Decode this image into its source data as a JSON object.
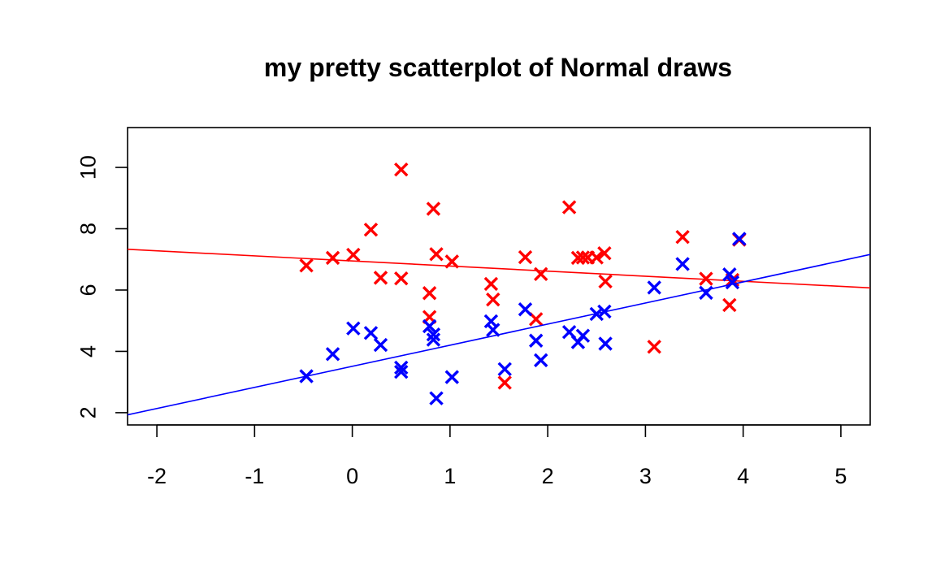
{
  "chart_data": {
    "type": "scatter",
    "title": "my pretty scatterplot of Normal draws",
    "xlabel": "",
    "ylabel": "",
    "xlim": [
      -2.3,
      5.3
    ],
    "ylim": [
      1.6,
      11.3
    ],
    "x_ticks": [
      -2,
      -1,
      0,
      1,
      2,
      3,
      4,
      5
    ],
    "y_ticks": [
      2,
      4,
      6,
      8,
      10
    ],
    "x_tick_labels": [
      "-2",
      "-1",
      "0",
      "1",
      "2",
      "3",
      "4",
      "5"
    ],
    "y_tick_labels": [
      "2",
      "4",
      "6",
      "8",
      "10"
    ],
    "grid": false,
    "legend": "none",
    "marker": "x",
    "series": [
      {
        "color": "#ff0000",
        "points": [
          [
            -0.47,
            6.8
          ],
          [
            -0.2,
            7.05
          ],
          [
            0.01,
            7.15
          ],
          [
            0.19,
            7.97
          ],
          [
            0.29,
            6.4
          ],
          [
            0.5,
            9.93
          ],
          [
            0.5,
            6.38
          ],
          [
            0.79,
            5.9
          ],
          [
            0.79,
            5.12
          ],
          [
            0.83,
            8.65
          ],
          [
            0.86,
            7.17
          ],
          [
            1.02,
            6.93
          ],
          [
            1.42,
            6.2
          ],
          [
            1.44,
            5.69
          ],
          [
            1.56,
            2.98
          ],
          [
            1.77,
            7.07
          ],
          [
            1.88,
            5.05
          ],
          [
            1.93,
            6.52
          ],
          [
            2.22,
            8.7
          ],
          [
            2.31,
            7.05
          ],
          [
            2.36,
            7.06
          ],
          [
            2.41,
            7.06
          ],
          [
            2.5,
            7.06
          ],
          [
            2.58,
            7.2
          ],
          [
            2.59,
            6.28
          ],
          [
            3.09,
            4.15
          ],
          [
            3.38,
            7.73
          ],
          [
            3.62,
            6.37
          ],
          [
            3.86,
            5.51
          ],
          [
            3.89,
            6.33
          ],
          [
            3.96,
            7.64
          ]
        ],
        "trend_line": {
          "from": [
            -2.3,
            7.33
          ],
          "to": [
            5.3,
            6.07
          ]
        }
      },
      {
        "color": "#0000ff",
        "points": [
          [
            -0.47,
            3.19
          ],
          [
            -0.2,
            3.91
          ],
          [
            0.01,
            4.75
          ],
          [
            0.19,
            4.6
          ],
          [
            0.29,
            4.21
          ],
          [
            0.5,
            3.47
          ],
          [
            0.5,
            3.33
          ],
          [
            0.79,
            4.82
          ],
          [
            0.83,
            4.55
          ],
          [
            0.83,
            4.38
          ],
          [
            0.86,
            2.47
          ],
          [
            1.02,
            3.16
          ],
          [
            1.42,
            4.98
          ],
          [
            1.44,
            4.7
          ],
          [
            1.56,
            3.42
          ],
          [
            1.77,
            5.37
          ],
          [
            1.88,
            4.35
          ],
          [
            1.93,
            3.71
          ],
          [
            2.22,
            4.63
          ],
          [
            2.31,
            4.3
          ],
          [
            2.36,
            4.51
          ],
          [
            2.5,
            5.22
          ],
          [
            2.58,
            5.3
          ],
          [
            2.59,
            4.25
          ],
          [
            3.09,
            6.08
          ],
          [
            3.38,
            6.85
          ],
          [
            3.62,
            5.91
          ],
          [
            3.86,
            6.51
          ],
          [
            3.89,
            6.25
          ],
          [
            3.96,
            7.67
          ]
        ],
        "trend_line": {
          "from": [
            -2.3,
            1.93
          ],
          "to": [
            5.3,
            7.16
          ]
        }
      }
    ]
  }
}
